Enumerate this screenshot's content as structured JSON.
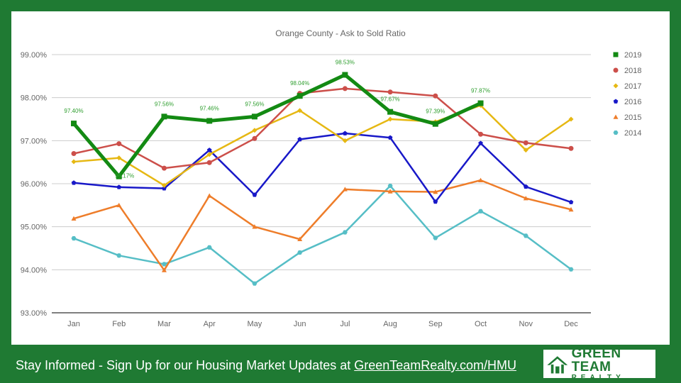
{
  "colors": {
    "frame": "#1f7a33",
    "grid": "#cccccc",
    "text": "#666666",
    "label": "#2e9e2e"
  },
  "chart_data": {
    "type": "line",
    "title": "Orange County - Ask to Sold Ratio",
    "categories": [
      "Jan",
      "Feb",
      "Mar",
      "Apr",
      "May",
      "Jun",
      "Jul",
      "Aug",
      "Sep",
      "Oct",
      "Nov",
      "Dec"
    ],
    "y_ticks": [
      "93.00%",
      "94.00%",
      "95.00%",
      "96.00%",
      "97.00%",
      "98.00%",
      "99.00%"
    ],
    "ylim": [
      93,
      99
    ],
    "grid": true,
    "legend_position": "right",
    "series": [
      {
        "name": "2019",
        "color": "#138a13",
        "marker": "square",
        "width": 5,
        "values": [
          97.4,
          96.17,
          97.56,
          97.46,
          97.56,
          98.04,
          98.53,
          97.67,
          97.39,
          97.87,
          null,
          null
        ],
        "labels": [
          "97.40%",
          "96.17%",
          "97.56%",
          "97.46%",
          "97.56%",
          "98.04%",
          "98.53%",
          "97.67%",
          "97.39%",
          "97.87%",
          "",
          ""
        ]
      },
      {
        "name": "2018",
        "color": "#cc4f4a",
        "marker": "circle",
        "width": 2.5,
        "values": [
          96.7,
          96.93,
          96.36,
          96.49,
          97.05,
          98.1,
          98.21,
          98.13,
          98.04,
          97.15,
          96.95,
          96.82
        ]
      },
      {
        "name": "2017",
        "color": "#e6b813",
        "marker": "diamond",
        "width": 2.5,
        "values": [
          96.51,
          96.6,
          95.96,
          96.68,
          97.24,
          97.7,
          97.0,
          97.5,
          97.44,
          97.82,
          96.78,
          97.5
        ]
      },
      {
        "name": "2016",
        "color": "#1818c8",
        "marker": "pentagon",
        "width": 2.5,
        "values": [
          96.02,
          95.92,
          95.89,
          96.78,
          95.74,
          97.03,
          97.17,
          97.07,
          95.58,
          96.94,
          95.93,
          95.57
        ]
      },
      {
        "name": "2015",
        "color": "#ee7d2a",
        "marker": "triangle",
        "width": 2.5,
        "values": [
          95.19,
          95.5,
          93.99,
          95.72,
          95.0,
          94.71,
          95.87,
          95.82,
          95.81,
          96.08,
          95.66,
          95.4
        ]
      },
      {
        "name": "2014",
        "color": "#56bec6",
        "marker": "hexagon",
        "width": 2.5,
        "values": [
          94.73,
          94.33,
          94.13,
          94.52,
          93.68,
          94.4,
          94.87,
          95.95,
          94.74,
          95.36,
          94.79,
          94.01
        ]
      }
    ]
  },
  "footer": {
    "text": "Stay Informed - Sign Up for our Housing Market Updates at ",
    "link": "GreenTeamRealty.com/HMU"
  },
  "logo": {
    "line1": "GREEN TEAM",
    "line2": "REALTY",
    "icon": "house-icon"
  }
}
